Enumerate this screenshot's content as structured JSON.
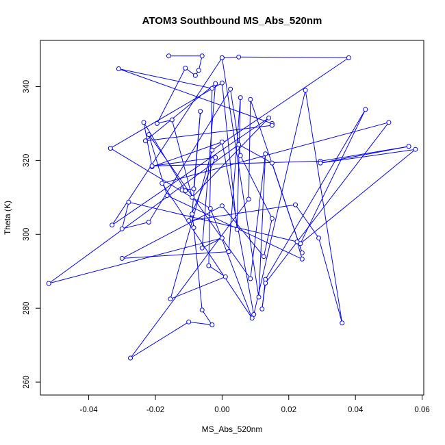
{
  "chart_data": {
    "type": "line",
    "title": "ATOM3 Southbound MS_Abs_520nm",
    "xlabel": "MS_Abs_520nm",
    "ylabel": "Theta (K)",
    "xlim": [
      -0.0545,
      0.0605
    ],
    "ylim": [
      256.5,
      352.5
    ],
    "xticks": [
      -0.04,
      -0.02,
      0.0,
      0.02,
      0.04,
      0.06
    ],
    "xtick_labels": [
      "-0.04",
      "-0.02",
      "0.00",
      "0.02",
      "0.04",
      "0.06"
    ],
    "yticks": [
      260,
      280,
      300,
      320,
      340
    ],
    "ytick_labels": [
      "260",
      "280",
      "300",
      "320",
      "340"
    ],
    "grid": false,
    "series": [
      {
        "color": "#0000ff",
        "marker": "open-circle",
        "line": true,
        "points": [
          [
            -0.016,
            348.3
          ],
          [
            -0.006,
            348.3
          ],
          [
            -0.007,
            344.4
          ],
          [
            -0.008,
            343.0
          ],
          [
            -0.011,
            345.0
          ],
          [
            -0.0195,
            330.0
          ],
          [
            -0.015,
            331.0
          ],
          [
            -0.009,
            310.0
          ],
          [
            0.014,
            331.5
          ],
          [
            -0.033,
            302.5
          ],
          [
            0.0,
            347.8
          ],
          [
            0.005,
            348.0
          ],
          [
            0.038,
            347.8
          ],
          [
            -0.003,
            322.8
          ],
          [
            -0.0155,
            282.5
          ],
          [
            0.001,
            288.5
          ],
          [
            -0.004,
            291.5
          ],
          [
            -0.003,
            339.5
          ],
          [
            -0.031,
            344.8
          ],
          [
            0.015,
            330.0
          ],
          [
            0.015,
            329.5
          ],
          [
            -0.023,
            325.3
          ],
          [
            -0.002,
            340.8
          ],
          [
            -0.006,
            296.3
          ],
          [
            0.0,
            299.0
          ],
          [
            -0.052,
            286.7
          ],
          [
            0.005,
            324.3
          ],
          [
            0.015,
            319.3
          ],
          [
            0.024,
            295.0
          ],
          [
            0.0085,
            336.5
          ],
          [
            0.008,
            309.5
          ],
          [
            -0.0275,
            266.5
          ],
          [
            -0.01,
            276.3
          ],
          [
            -0.003,
            275.5
          ],
          [
            -0.006,
            279.5
          ],
          [
            -0.0085,
            301.8
          ],
          [
            -0.009,
            305.5
          ],
          [
            -0.0065,
            333.3
          ],
          [
            -0.0085,
            312.3
          ],
          [
            -0.012,
            312.0
          ],
          [
            -0.011,
            311.8
          ],
          [
            -0.0235,
            330.3
          ],
          [
            -0.021,
            318.3
          ],
          [
            0.0,
            325.0
          ],
          [
            0.0095,
            278.3
          ],
          [
            0.025,
            339.0
          ],
          [
            0.036,
            276.0
          ],
          [
            0.029,
            299.0
          ],
          [
            0.022,
            308.0
          ],
          [
            -0.01,
            303.7
          ],
          [
            -0.002,
            320.8
          ],
          [
            -0.021,
            318.5
          ],
          [
            0.0295,
            319.8
          ],
          [
            0.056,
            323.8
          ],
          [
            0.0295,
            319.3
          ],
          [
            0.058,
            323.0
          ],
          [
            0.0235,
            297.5
          ],
          [
            0.043,
            333.8
          ],
          [
            0.013,
            287.8
          ],
          [
            0.012,
            279.8
          ],
          [
            0.013,
            286.8
          ],
          [
            0.05,
            330.3
          ],
          [
            -0.018,
            313.8
          ],
          [
            0.009,
            277.3
          ],
          [
            -0.0035,
            307.0
          ],
          [
            -0.0335,
            323.3
          ],
          [
            0.0,
            341.0
          ],
          [
            0.0045,
            301.3
          ],
          [
            0.0055,
            337.0
          ],
          [
            0.002,
            295.3
          ],
          [
            -0.03,
            293.5
          ],
          [
            0.0,
            307.7
          ],
          [
            0.0125,
            294.0
          ],
          [
            0.015,
            304.3
          ],
          [
            0.0055,
            321.3
          ],
          [
            0.0025,
            339.3
          ],
          [
            -0.022,
            303.3
          ],
          [
            -0.03,
            301.5
          ],
          [
            -0.028,
            308.7
          ],
          [
            0.0225,
            298.0
          ],
          [
            0.024,
            293.3
          ],
          [
            -0.0165,
            310.5
          ],
          [
            -0.022,
            327.0
          ],
          [
            0.0085,
            288.0
          ],
          [
            0.013,
            321.8
          ],
          [
            0.011,
            283.0
          ],
          [
            -0.0,
            347.8
          ]
        ]
      }
    ]
  }
}
